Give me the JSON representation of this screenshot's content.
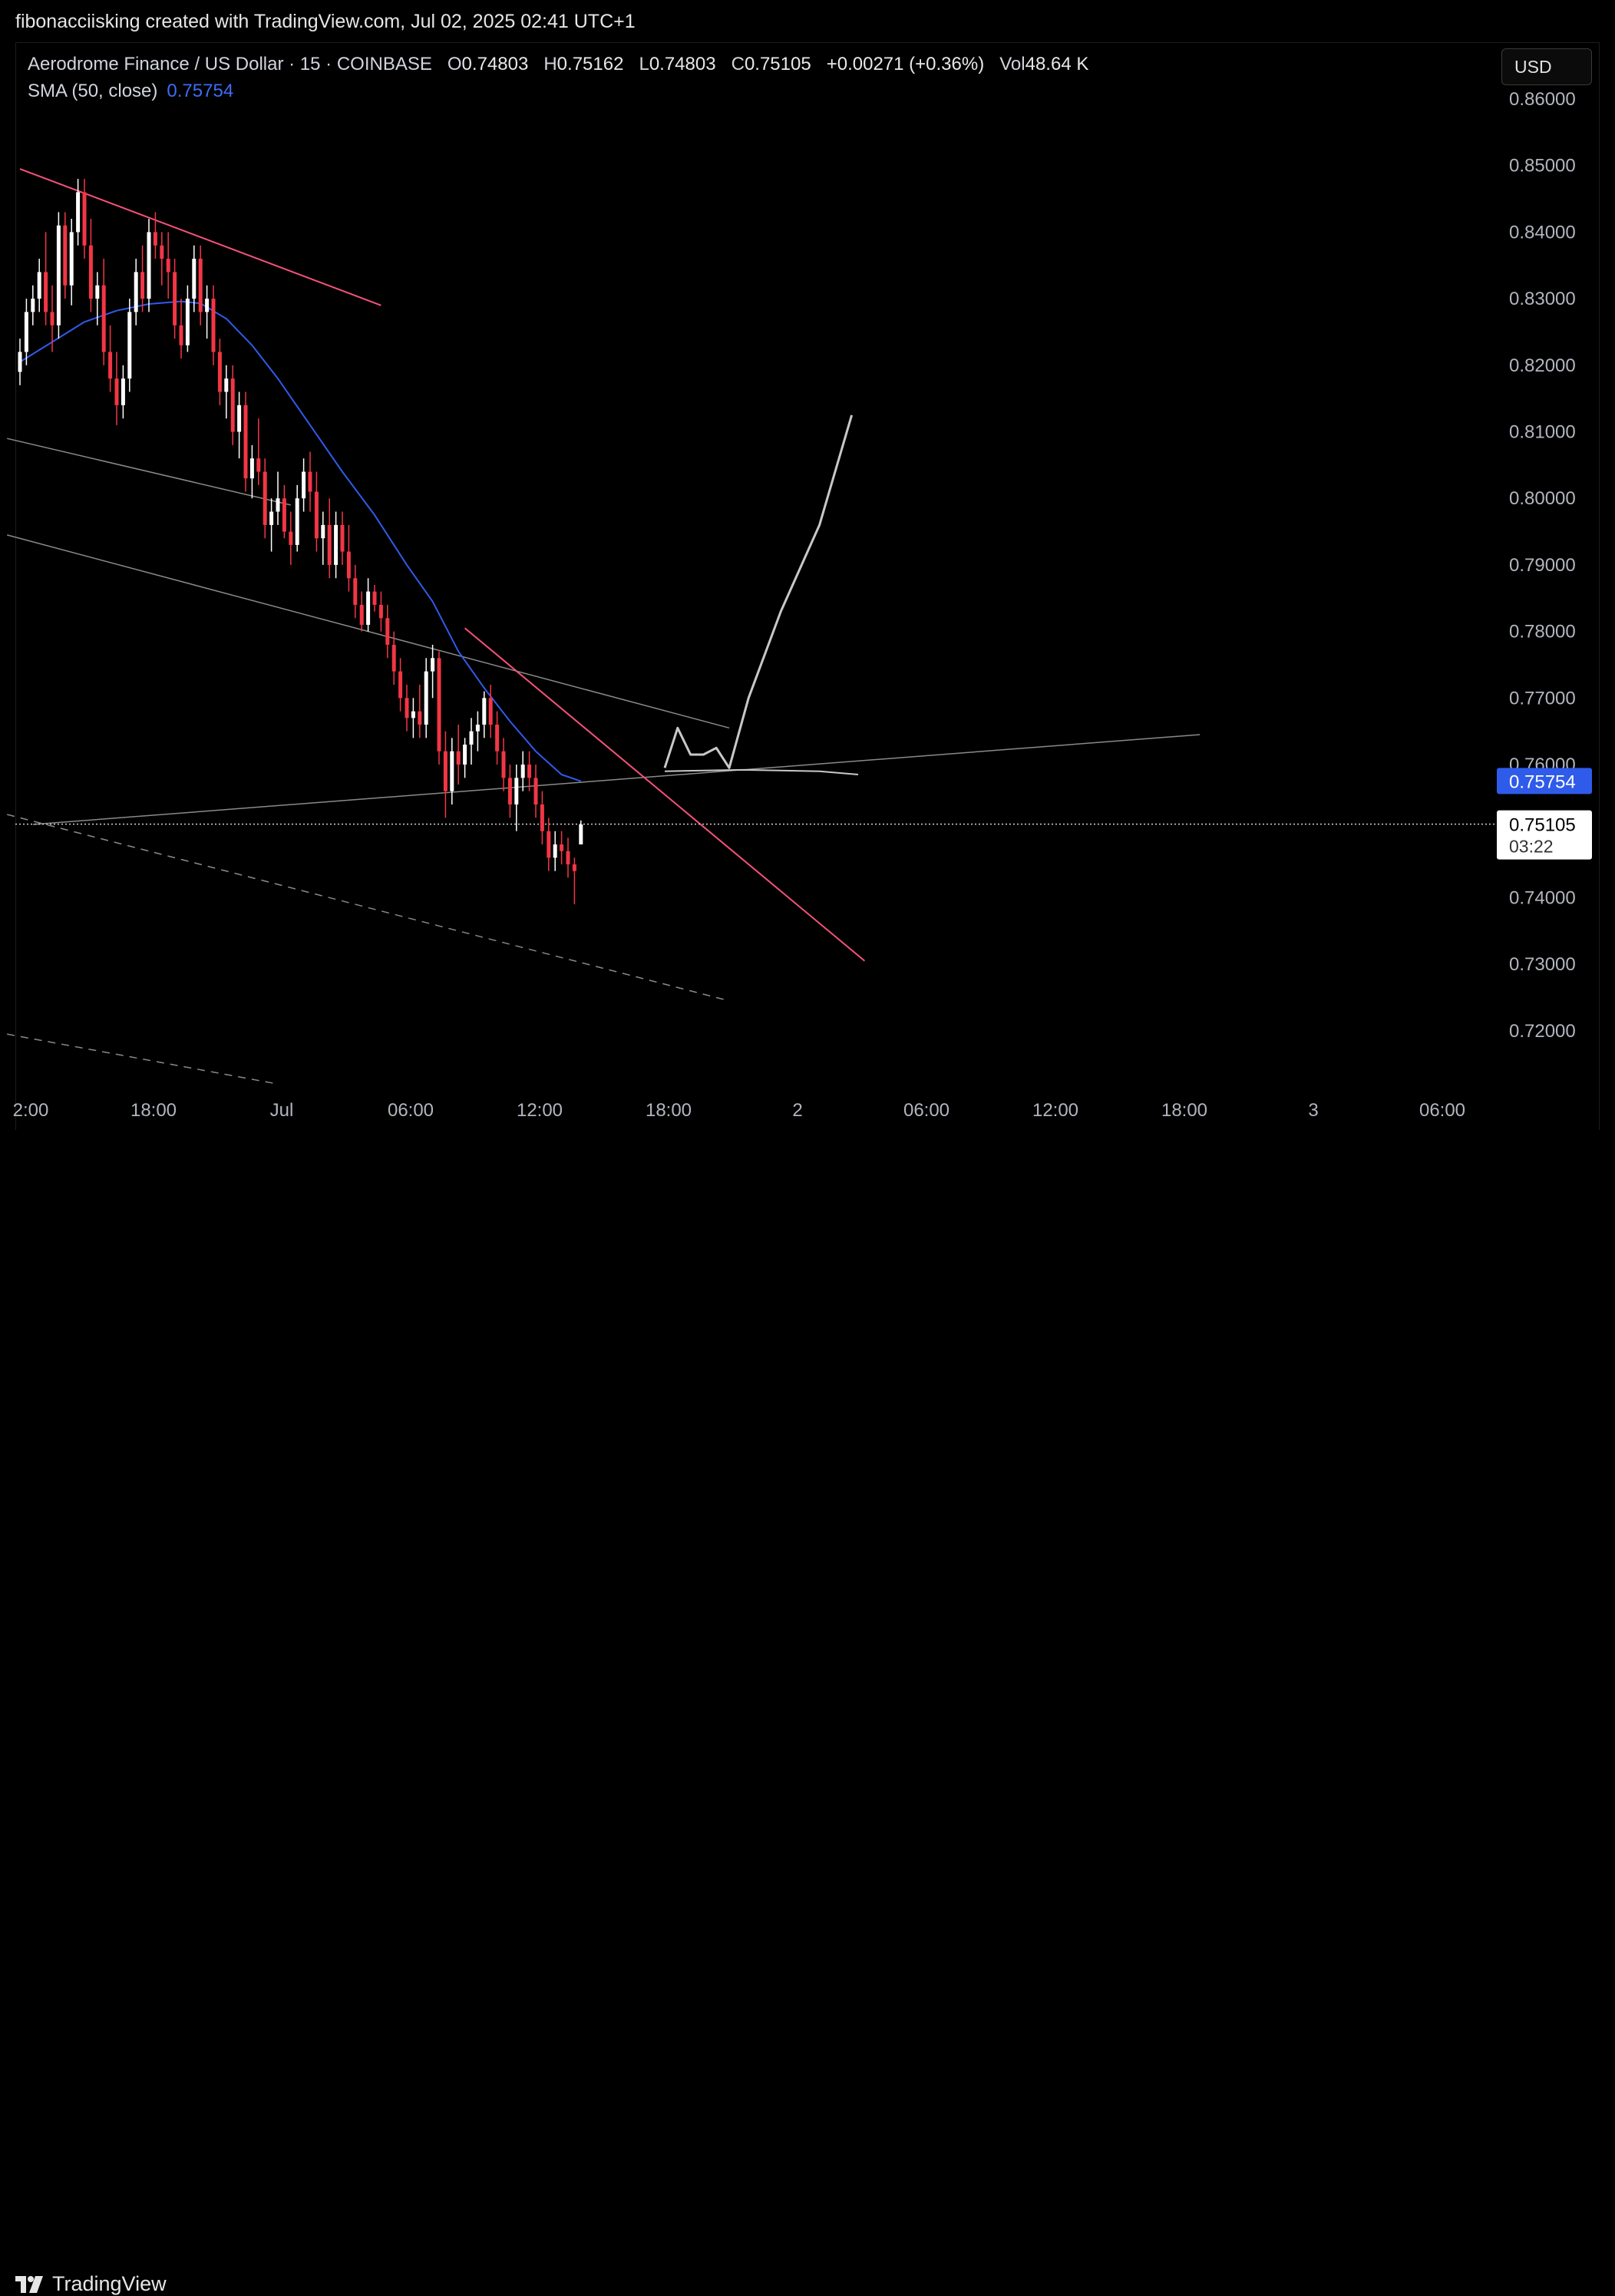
{
  "header": {
    "credit": "fibonacciisking created with TradingView.com, Jul 02, 2025 02:41 UTC+1"
  },
  "legend": {
    "symbol": "Aerodrome Finance / US Dollar · 15 · COINBASE",
    "open_label": "O",
    "open": "0.74803",
    "high_label": "H",
    "high": "0.75162",
    "low_label": "L",
    "low": "0.74803",
    "close_label": "C",
    "close": "0.75105",
    "change": "+0.00271 (+0.36%)",
    "vol_label": "Vol",
    "volume": "48.64 K",
    "sma_label": "SMA (50, close)",
    "sma_value": "0.75754"
  },
  "currency_button": "USD",
  "price_tags": {
    "sma": "0.75754",
    "last": "0.75105",
    "countdown": "03:22"
  },
  "footer": {
    "brand": "TradingView"
  },
  "colors": {
    "up": "#ffffff",
    "down": "#f23645",
    "sma": "#2f5bea",
    "trendline": "#f7527a",
    "channel": "#8a8a8a",
    "projection": "#c8c8c8"
  },
  "chart_data": {
    "type": "candlestick",
    "y_ticks": [
      "0.86000",
      "0.85000",
      "0.84000",
      "0.83000",
      "0.82000",
      "0.81000",
      "0.80000",
      "0.79000",
      "0.78000",
      "0.77000",
      "0.76000",
      "0.74000",
      "0.73000",
      "0.72000"
    ],
    "x_ticks": [
      "2:00",
      "18:00",
      "Jul",
      "06:00",
      "12:00",
      "18:00",
      "2",
      "06:00",
      "12:00",
      "18:00",
      "3",
      "06:00"
    ],
    "ylim": [
      0.7115,
      0.8615
    ],
    "sma_last": 0.75754,
    "last_price": 0.75105,
    "ohlc": [
      [
        0.819,
        0.824,
        0.817,
        0.822
      ],
      [
        0.822,
        0.83,
        0.82,
        0.828
      ],
      [
        0.828,
        0.832,
        0.826,
        0.83
      ],
      [
        0.83,
        0.836,
        0.828,
        0.834
      ],
      [
        0.834,
        0.84,
        0.826,
        0.828
      ],
      [
        0.828,
        0.832,
        0.822,
        0.826
      ],
      [
        0.826,
        0.843,
        0.824,
        0.841
      ],
      [
        0.841,
        0.843,
        0.83,
        0.832
      ],
      [
        0.832,
        0.842,
        0.829,
        0.84
      ],
      [
        0.84,
        0.848,
        0.838,
        0.846
      ],
      [
        0.846,
        0.848,
        0.836,
        0.838
      ],
      [
        0.838,
        0.842,
        0.828,
        0.83
      ],
      [
        0.83,
        0.834,
        0.826,
        0.832
      ],
      [
        0.832,
        0.836,
        0.82,
        0.822
      ],
      [
        0.822,
        0.826,
        0.816,
        0.818
      ],
      [
        0.818,
        0.822,
        0.811,
        0.814
      ],
      [
        0.814,
        0.82,
        0.812,
        0.818
      ],
      [
        0.818,
        0.83,
        0.816,
        0.828
      ],
      [
        0.828,
        0.836,
        0.826,
        0.834
      ],
      [
        0.834,
        0.838,
        0.828,
        0.83
      ],
      [
        0.83,
        0.842,
        0.828,
        0.84
      ],
      [
        0.84,
        0.843,
        0.836,
        0.838
      ],
      [
        0.838,
        0.84,
        0.832,
        0.836
      ],
      [
        0.836,
        0.84,
        0.83,
        0.834
      ],
      [
        0.834,
        0.836,
        0.824,
        0.826
      ],
      [
        0.826,
        0.83,
        0.821,
        0.823
      ],
      [
        0.823,
        0.832,
        0.822,
        0.83
      ],
      [
        0.83,
        0.838,
        0.828,
        0.836
      ],
      [
        0.836,
        0.838,
        0.826,
        0.828
      ],
      [
        0.828,
        0.832,
        0.824,
        0.83
      ],
      [
        0.83,
        0.832,
        0.82,
        0.822
      ],
      [
        0.822,
        0.824,
        0.814,
        0.816
      ],
      [
        0.816,
        0.82,
        0.812,
        0.818
      ],
      [
        0.818,
        0.82,
        0.808,
        0.81
      ],
      [
        0.81,
        0.816,
        0.806,
        0.814
      ],
      [
        0.814,
        0.816,
        0.801,
        0.803
      ],
      [
        0.803,
        0.808,
        0.8,
        0.806
      ],
      [
        0.806,
        0.812,
        0.802,
        0.804
      ],
      [
        0.804,
        0.806,
        0.794,
        0.796
      ],
      [
        0.796,
        0.8,
        0.792,
        0.798
      ],
      [
        0.798,
        0.804,
        0.796,
        0.8
      ],
      [
        0.8,
        0.802,
        0.794,
        0.795
      ],
      [
        0.795,
        0.798,
        0.79,
        0.793
      ],
      [
        0.793,
        0.802,
        0.792,
        0.8
      ],
      [
        0.8,
        0.806,
        0.798,
        0.804
      ],
      [
        0.804,
        0.807,
        0.798,
        0.801
      ],
      [
        0.801,
        0.804,
        0.792,
        0.794
      ],
      [
        0.794,
        0.798,
        0.79,
        0.796
      ],
      [
        0.796,
        0.8,
        0.788,
        0.79
      ],
      [
        0.79,
        0.798,
        0.788,
        0.796
      ],
      [
        0.796,
        0.798,
        0.79,
        0.792
      ],
      [
        0.792,
        0.796,
        0.786,
        0.788
      ],
      [
        0.788,
        0.79,
        0.782,
        0.784
      ],
      [
        0.784,
        0.786,
        0.78,
        0.781
      ],
      [
        0.781,
        0.788,
        0.78,
        0.786
      ],
      [
        0.786,
        0.787,
        0.783,
        0.784
      ],
      [
        0.784,
        0.786,
        0.78,
        0.782
      ],
      [
        0.782,
        0.784,
        0.776,
        0.778
      ],
      [
        0.778,
        0.78,
        0.772,
        0.774
      ],
      [
        0.774,
        0.776,
        0.768,
        0.77
      ],
      [
        0.77,
        0.772,
        0.765,
        0.767
      ],
      [
        0.767,
        0.77,
        0.764,
        0.768
      ],
      [
        0.768,
        0.772,
        0.764,
        0.766
      ],
      [
        0.766,
        0.776,
        0.764,
        0.774
      ],
      [
        0.774,
        0.778,
        0.77,
        0.776
      ],
      [
        0.776,
        0.777,
        0.76,
        0.762
      ],
      [
        0.762,
        0.765,
        0.752,
        0.756
      ],
      [
        0.756,
        0.764,
        0.754,
        0.762
      ],
      [
        0.762,
        0.766,
        0.757,
        0.76
      ],
      [
        0.76,
        0.764,
        0.758,
        0.763
      ],
      [
        0.763,
        0.767,
        0.76,
        0.765
      ],
      [
        0.765,
        0.768,
        0.762,
        0.766
      ],
      [
        0.766,
        0.771,
        0.764,
        0.77
      ],
      [
        0.77,
        0.772,
        0.764,
        0.766
      ],
      [
        0.766,
        0.768,
        0.76,
        0.762
      ],
      [
        0.762,
        0.764,
        0.756,
        0.758
      ],
      [
        0.758,
        0.76,
        0.752,
        0.754
      ],
      [
        0.754,
        0.76,
        0.75,
        0.758
      ],
      [
        0.758,
        0.762,
        0.756,
        0.76
      ],
      [
        0.76,
        0.762,
        0.756,
        0.758
      ],
      [
        0.758,
        0.76,
        0.752,
        0.754
      ],
      [
        0.754,
        0.756,
        0.748,
        0.75
      ],
      [
        0.75,
        0.752,
        0.744,
        0.746
      ],
      [
        0.746,
        0.75,
        0.744,
        0.748
      ],
      [
        0.748,
        0.75,
        0.745,
        0.747
      ],
      [
        0.747,
        0.749,
        0.743,
        0.745
      ],
      [
        0.745,
        0.746,
        0.739,
        0.744
      ],
      [
        0.748,
        0.7516,
        0.748,
        0.751
      ]
    ],
    "sma": [
      [
        0,
        0.8205
      ],
      [
        5,
        0.8235
      ],
      [
        10,
        0.8265
      ],
      [
        15,
        0.8282
      ],
      [
        20,
        0.8292
      ],
      [
        25,
        0.8296
      ],
      [
        28,
        0.8293
      ],
      [
        32,
        0.827
      ],
      [
        36,
        0.823
      ],
      [
        40,
        0.818
      ],
      [
        45,
        0.811
      ],
      [
        50,
        0.804
      ],
      [
        55,
        0.7975
      ],
      [
        60,
        0.79
      ],
      [
        64,
        0.7845
      ],
      [
        68,
        0.777
      ],
      [
        72,
        0.7715
      ],
      [
        76,
        0.7665
      ],
      [
        80,
        0.762
      ],
      [
        84,
        0.7585
      ],
      [
        87,
        0.7575
      ]
    ],
    "drawings": {
      "upper_trendline": [
        [
          0,
          0.8495
        ],
        [
          56,
          0.829
        ]
      ],
      "lower_trendline": [
        [
          69,
          0.7805
        ],
        [
          131,
          0.7305
        ]
      ],
      "channel_upper": [
        [
          -2,
          0.809
        ],
        [
          42,
          0.799
        ]
      ],
      "channel_long": [
        [
          -2,
          0.7945
        ],
        [
          110,
          0.7655
        ]
      ],
      "support_line": [
        [
          2,
          0.751
        ],
        [
          183,
          0.7645
        ]
      ],
      "dashed_lower_1": [
        [
          -2,
          0.7525
        ],
        [
          110,
          0.7245
        ]
      ],
      "dashed_lower_2": [
        [
          -2,
          0.7195
        ],
        [
          40,
          0.712
        ]
      ],
      "projection_curve": [
        [
          100,
          0.7595
        ],
        [
          102,
          0.7655
        ],
        [
          104,
          0.7615
        ],
        [
          106,
          0.7615
        ],
        [
          108,
          0.7625
        ],
        [
          110,
          0.7595
        ],
        [
          113,
          0.77
        ],
        [
          118,
          0.783
        ],
        [
          124,
          0.796
        ],
        [
          129,
          0.8125
        ]
      ],
      "flat_curve": [
        [
          100,
          0.759
        ],
        [
          112,
          0.7592
        ],
        [
          124,
          0.759
        ],
        [
          130,
          0.7585
        ]
      ]
    }
  }
}
